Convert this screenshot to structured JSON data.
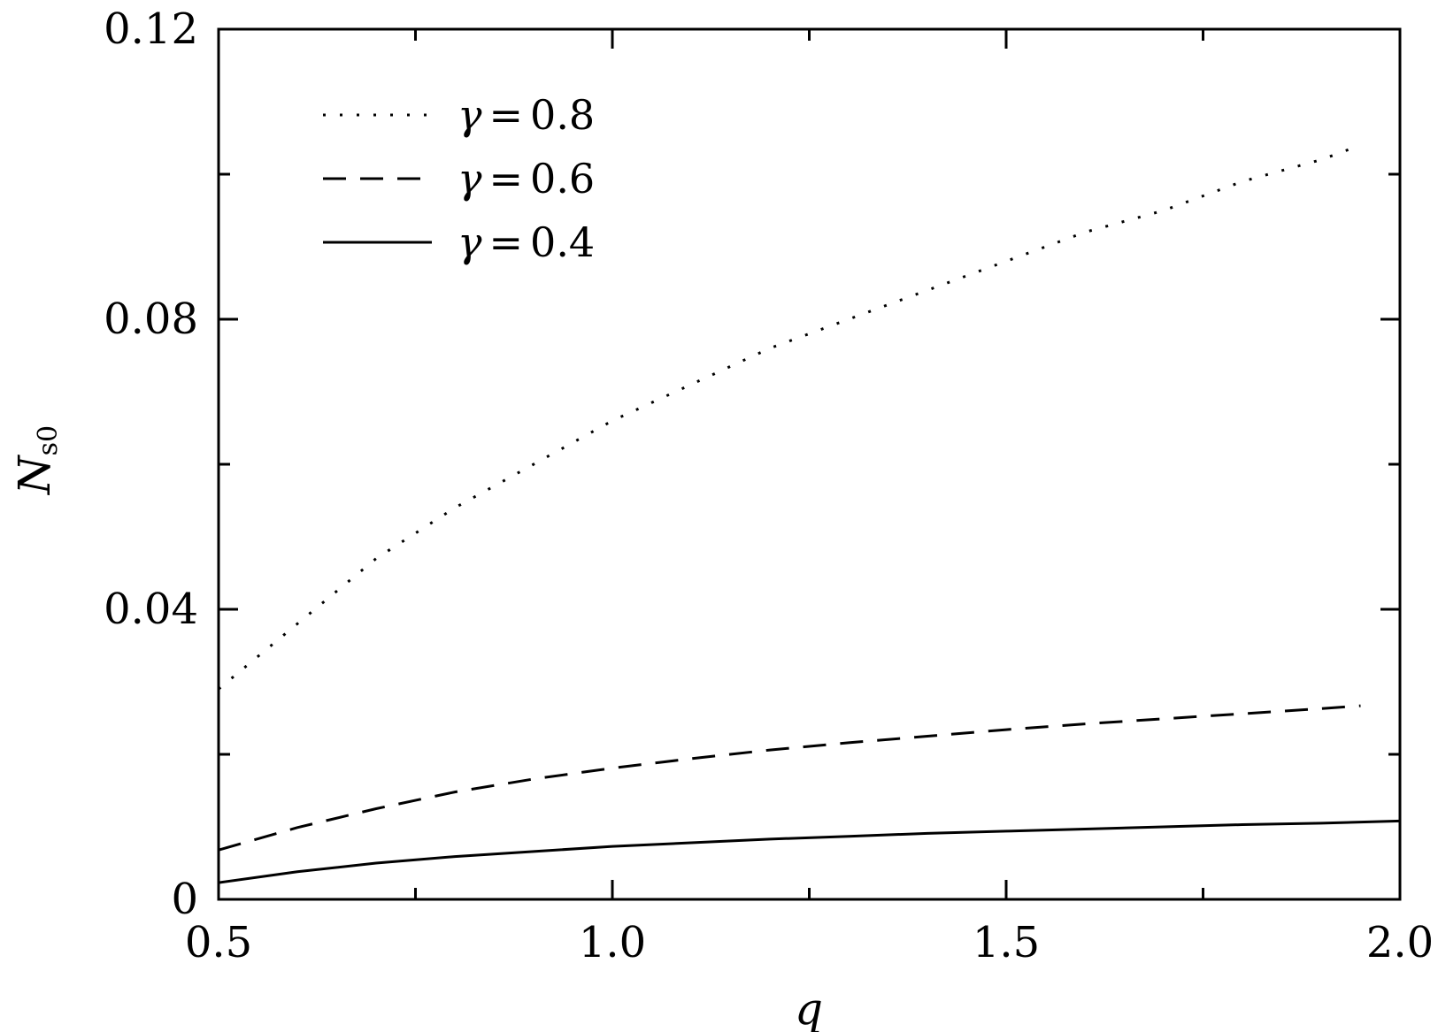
{
  "chart_data": {
    "type": "line",
    "title": "",
    "xlabel": "q",
    "ylabel": "N",
    "ylabel_subscript": "s0",
    "xlim": [
      0.5,
      2.0
    ],
    "ylim": [
      0,
      0.12
    ],
    "x_ticks": [
      0.5,
      1.0,
      1.5,
      2.0
    ],
    "x_tick_labels": [
      "0.5",
      "1.0",
      "1.5",
      "2.0"
    ],
    "x_minor_ticks": [
      0.75,
      1.25,
      1.75
    ],
    "y_ticks": [
      0,
      0.04,
      0.08,
      0.12
    ],
    "y_tick_labels": [
      "0",
      "0.04",
      "0.08",
      "0.12"
    ],
    "y_minor_ticks": [
      0.02,
      0.06,
      0.1
    ],
    "grid": false,
    "legend_position": "top-left",
    "series": [
      {
        "name": "γ = 0.8",
        "legend_symbol": "γ",
        "legend_value": "0.8",
        "style": "dotted",
        "x": [
          0.5,
          0.6,
          0.7,
          0.8,
          0.9,
          1.0,
          1.1,
          1.2,
          1.3,
          1.4,
          1.5,
          1.6,
          1.7,
          1.8,
          1.9,
          1.95
        ],
        "y": [
          0.029,
          0.038,
          0.047,
          0.054,
          0.06,
          0.066,
          0.071,
          0.076,
          0.08,
          0.084,
          0.088,
          0.092,
          0.095,
          0.099,
          0.102,
          0.104
        ]
      },
      {
        "name": "γ = 0.6",
        "legend_symbol": "γ",
        "legend_value": "0.6",
        "style": "dashed",
        "x": [
          0.5,
          0.6,
          0.7,
          0.8,
          0.9,
          1.0,
          1.1,
          1.2,
          1.3,
          1.4,
          1.5,
          1.6,
          1.7,
          1.8,
          1.9,
          1.95
        ],
        "y": [
          0.0068,
          0.0099,
          0.0125,
          0.0148,
          0.0166,
          0.0181,
          0.0194,
          0.0206,
          0.0216,
          0.0225,
          0.0234,
          0.0242,
          0.0249,
          0.0256,
          0.0263,
          0.0267
        ]
      },
      {
        "name": "γ = 0.4",
        "legend_symbol": "γ",
        "legend_value": "0.4",
        "style": "solid",
        "x": [
          0.5,
          0.6,
          0.7,
          0.8,
          0.9,
          1.0,
          1.1,
          1.2,
          1.3,
          1.4,
          1.5,
          1.6,
          1.7,
          1.8,
          1.9,
          2.0
        ],
        "y": [
          0.0023,
          0.0038,
          0.005,
          0.0059,
          0.0066,
          0.0073,
          0.0078,
          0.0083,
          0.0087,
          0.0091,
          0.0094,
          0.0097,
          0.01,
          0.0103,
          0.0105,
          0.0108
        ]
      }
    ]
  }
}
